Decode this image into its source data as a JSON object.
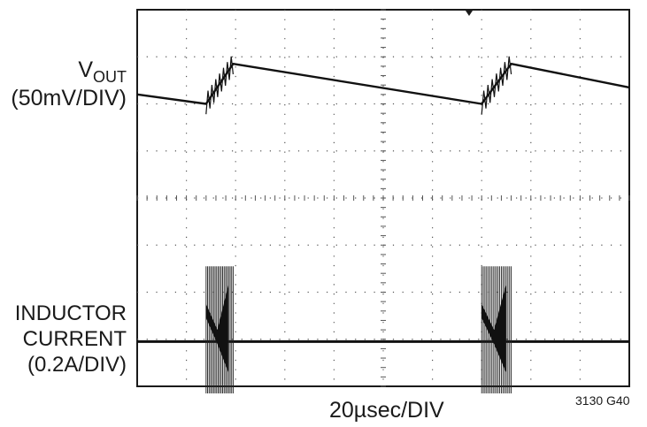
{
  "chart_data": {
    "type": "line",
    "title": "",
    "xlabel": "20µsec/DIV",
    "figure_id": "3130 G40",
    "grid": true,
    "divisions": {
      "x": 10,
      "y": 8
    },
    "x_unit": "div",
    "xlim": [
      0,
      10
    ],
    "ylim": [
      0,
      8
    ],
    "series": [
      {
        "name": "VOUT",
        "label_main": "V",
        "label_sub": "OUT",
        "label_scale": "(50mV/DIV)",
        "x": [
          0,
          1.4,
          1.95,
          7.0,
          7.6,
          10
        ],
        "y": [
          6.2,
          6.0,
          6.85,
          6.0,
          6.85,
          6.35
        ],
        "bursts": [
          [
            1.4,
            1.95
          ],
          [
            7.0,
            7.6
          ]
        ]
      },
      {
        "name": "INDUCTOR CURRENT",
        "label_lines": [
          "INDUCTOR",
          "CURRENT",
          "(0.2A/DIV)"
        ],
        "x": [
          0,
          1.4,
          1.95,
          7.0,
          7.6,
          10
        ],
        "y": [
          0.95,
          0.95,
          0.95,
          0.95,
          0.95,
          0.95
        ],
        "bursts": [
          [
            1.4,
            1.95
          ],
          [
            7.0,
            7.6
          ]
        ],
        "burst_peak": 2.55,
        "burst_trough": -0.15
      }
    ]
  }
}
